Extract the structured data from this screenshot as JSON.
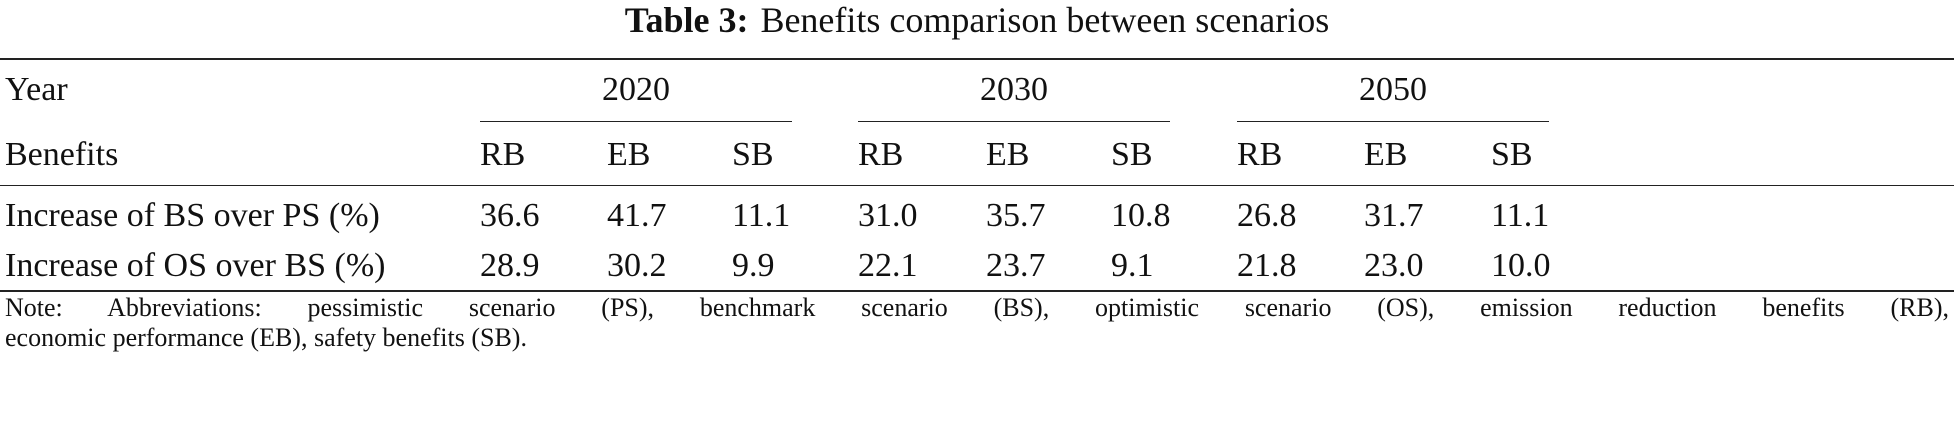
{
  "title": {
    "label": "Table 3:",
    "text": "Benefits comparison between scenarios"
  },
  "table": {
    "header": {
      "year_label": "Year",
      "groups": [
        "2020",
        "2030",
        "2050"
      ],
      "benefits_label": "Benefits",
      "subcolumns": [
        "RB",
        "EB",
        "SB",
        "RB",
        "EB",
        "SB",
        "RB",
        "EB",
        "SB"
      ]
    },
    "rows": [
      [
        "Increase of BS over PS (%)",
        "36.6",
        "41.7",
        "11.1",
        "31.0",
        "35.7",
        "10.8",
        "26.8",
        "31.7",
        "11.1"
      ],
      [
        "Increase of OS over BS (%)",
        "28.9",
        "30.2",
        "9.9",
        "22.1",
        "23.7",
        "9.1",
        "21.8",
        "23.0",
        "10.0"
      ]
    ]
  },
  "note": {
    "lines": [
      "Note: Abbreviations: pessimistic scenario (PS), benchmark scenario (BS), optimistic scenario (OS), emission reduction benefits (RB),",
      "economic performance (EB), safety benefits (SB)."
    ]
  }
}
